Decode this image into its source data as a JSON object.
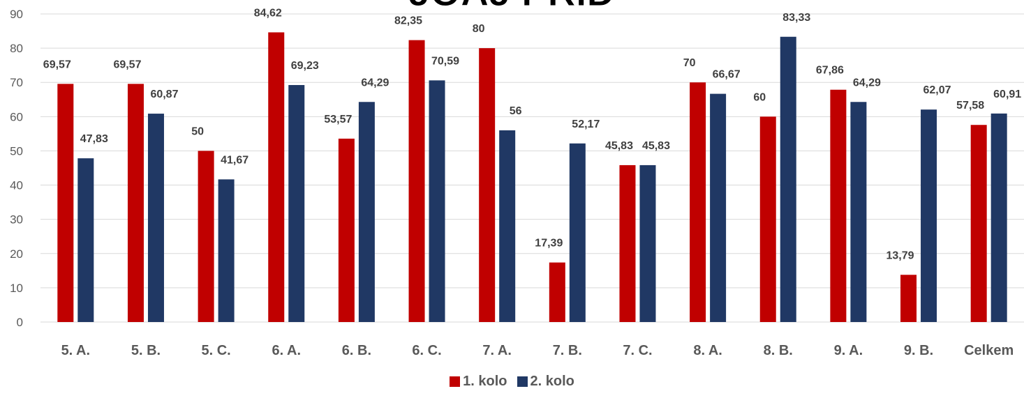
{
  "chart_data": {
    "type": "bar",
    "title": "JOAJ PRID",
    "categories": [
      "5. A.",
      "5. B.",
      "5. C.",
      "6. A.",
      "6. B.",
      "6. C.",
      "7. A.",
      "7. B.",
      "7. C.",
      "8. A.",
      "8. B.",
      "9. A.",
      "9. B.",
      "Celkem"
    ],
    "series": [
      {
        "name": "1. kolo",
        "color": "#C00000",
        "values": [
          69.57,
          69.57,
          50,
          84.62,
          53.57,
          82.35,
          80,
          17.39,
          45.83,
          70,
          60,
          67.86,
          13.79,
          57.58
        ],
        "labels": [
          "69,57",
          "69,57",
          "50",
          "84,62",
          "53,57",
          "82,35",
          "80",
          "17,39",
          "45,83",
          "70",
          "60",
          "67,86",
          "13,79",
          "57,58"
        ]
      },
      {
        "name": "2. kolo",
        "color": "#203864",
        "values": [
          47.83,
          60.87,
          41.67,
          69.23,
          64.29,
          70.59,
          56,
          52.17,
          45.83,
          66.67,
          83.33,
          64.29,
          62.07,
          60.91
        ],
        "labels": [
          "47,83",
          "60,87",
          "41,67",
          "69,23",
          "64,29",
          "70,59",
          "56",
          "52,17",
          "45,83",
          "66,67",
          "83,33",
          "64,29",
          "62,07",
          "60,91"
        ]
      }
    ],
    "yticks": [
      0,
      10,
      20,
      30,
      40,
      50,
      60,
      70,
      80,
      90
    ],
    "ylim": [
      0,
      90
    ],
    "grid": true,
    "legend": "bottom"
  }
}
